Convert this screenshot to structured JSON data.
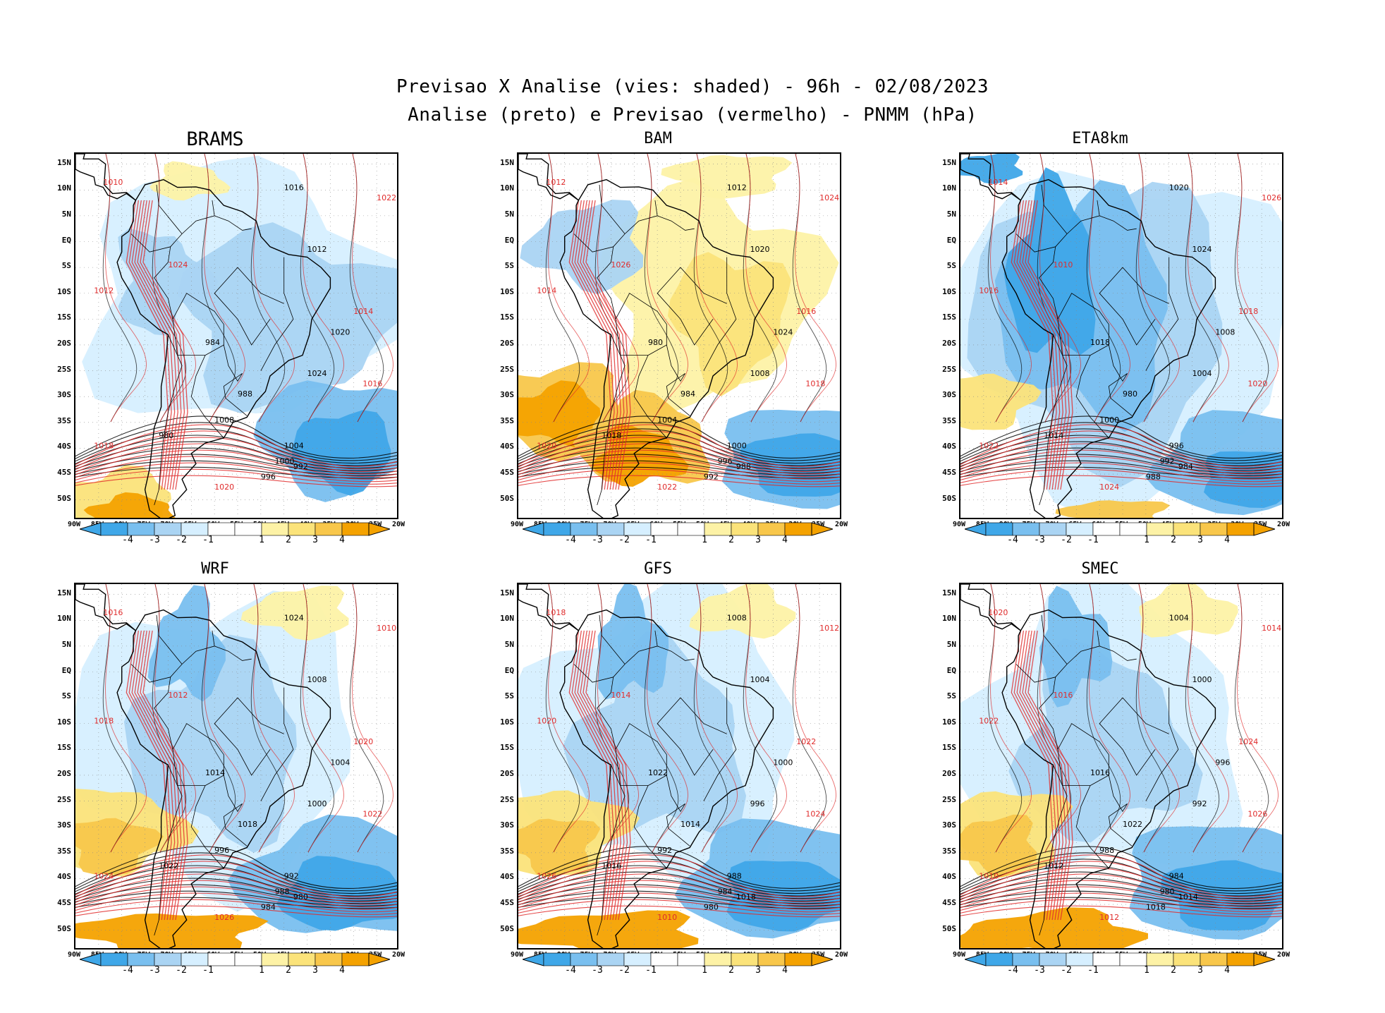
{
  "title": {
    "line1": "Previsao X Analise (vies: shaded) - 96h - 02/08/2023",
    "line2": "Analise (preto) e Previsao (vermelho) - PNMM (hPa)"
  },
  "panels": [
    {
      "id": "brams",
      "name": "BRAMS",
      "bias": "mixed_neg"
    },
    {
      "id": "bam",
      "name": "BAM",
      "bias": "positive"
    },
    {
      "id": "eta8km",
      "name": "ETA8km",
      "bias": "negative"
    },
    {
      "id": "wrf",
      "name": "WRF",
      "bias": "mixed"
    },
    {
      "id": "gfs",
      "name": "GFS",
      "bias": "mixed"
    },
    {
      "id": "smec",
      "name": "SMEC",
      "bias": "mixed"
    }
  ],
  "y_ticks": [
    "15N",
    "10N",
    "5N",
    "EQ",
    "5S",
    "10S",
    "15S",
    "20S",
    "25S",
    "30S",
    "35S",
    "40S",
    "45S",
    "50S"
  ],
  "x_ticks": [
    "90W",
    "85W",
    "80W",
    "75W",
    "70W",
    "65W",
    "60W",
    "55W",
    "50W",
    "45W",
    "40W",
    "35W",
    "30W",
    "25W",
    "20W"
  ],
  "colorbar": {
    "labels": [
      "-4",
      "-3",
      "-2",
      "-1",
      "1",
      "2",
      "3",
      "4"
    ],
    "colors": [
      "#3fa7e8",
      "#79bfef",
      "#aad4f3",
      "#d6efff",
      "#ffffff",
      "#ffffff",
      "#fdf2a6",
      "#fbe37a",
      "#f8c74b",
      "#f4a200"
    ]
  },
  "contour_labels": {
    "analysis": [
      "1016",
      "1012",
      "1020",
      "1024",
      "1008",
      "1004",
      "1000",
      "996",
      "992",
      "988",
      "984",
      "980",
      "1018",
      "1014",
      "1022"
    ],
    "forecast": [
      "1010",
      "1012",
      "1014",
      "1016",
      "1018",
      "1020",
      "1022",
      "1024",
      "1026"
    ]
  },
  "colors": {
    "analysis_contour": "#000000",
    "forecast_contour": "#e02b2b",
    "land_outline": "#000000"
  }
}
